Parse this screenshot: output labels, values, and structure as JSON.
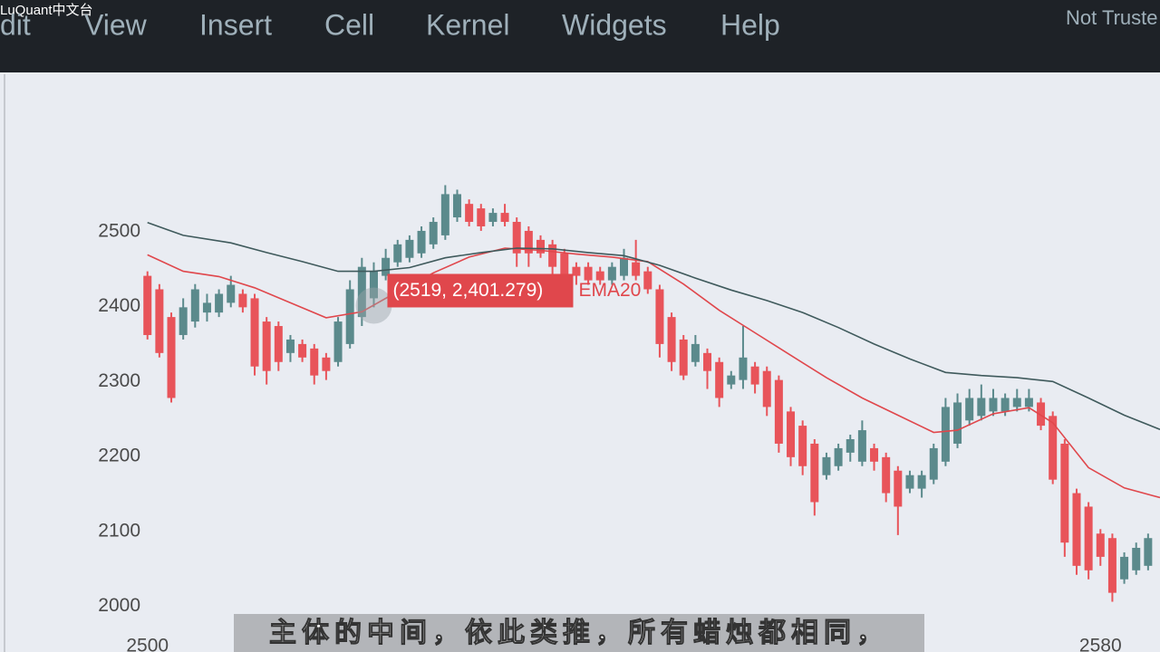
{
  "watermark": "LuQuant中文台",
  "menu": {
    "items": [
      "dit",
      "View",
      "Insert",
      "Cell",
      "Kernel",
      "Widgets",
      "Help"
    ],
    "trust_status": "Not Truste"
  },
  "subtitle": "主体的中间，依此类推，所有蜡烛都相同，",
  "chart_data": {
    "type": "candlestick",
    "up_color": "#5b8a8c",
    "down_color": "#e8545a",
    "xlim": [
      2488,
      2585
    ],
    "ylim": [
      1939,
      2710
    ],
    "xticks": [
      2500,
      2580
    ],
    "yticks": [
      2000,
      2100,
      2200,
      2300,
      2400,
      2500
    ],
    "x": [
      2500,
      2501,
      2502,
      2503,
      2504,
      2505,
      2506,
      2507,
      2508,
      2509,
      2510,
      2511,
      2512,
      2513,
      2514,
      2515,
      2516,
      2517,
      2518,
      2519,
      2520,
      2521,
      2522,
      2523,
      2524,
      2525,
      2526,
      2527,
      2528,
      2529,
      2530,
      2531,
      2532,
      2533,
      2534,
      2535,
      2536,
      2537,
      2538,
      2539,
      2540,
      2541,
      2542,
      2543,
      2544,
      2545,
      2546,
      2547,
      2548,
      2549,
      2550,
      2551,
      2552,
      2553,
      2554,
      2555,
      2556,
      2557,
      2558,
      2559,
      2560,
      2561,
      2562,
      2563,
      2564,
      2565,
      2566,
      2567,
      2568,
      2569,
      2570,
      2571,
      2572,
      2573,
      2574,
      2575,
      2576,
      2577,
      2578,
      2579,
      2580,
      2581,
      2582,
      2583,
      2584
    ],
    "open": [
      2441,
      2423,
      2386,
      2362,
      2380,
      2392,
      2392,
      2405,
      2417,
      2411,
      2380,
      2374,
      2338,
      2350,
      2344,
      2332,
      2326,
      2350,
      2386,
      2411,
      2441,
      2459,
      2465,
      2471,
      2483,
      2495,
      2519,
      2537,
      2531,
      2513,
      2525,
      2513,
      2501,
      2489,
      2483,
      2471,
      2453,
      2453,
      2447,
      2435,
      2441,
      2459,
      2447,
      2423,
      2386,
      2356,
      2326,
      2338,
      2326,
      2296,
      2302,
      2320,
      2314,
      2302,
      2260,
      2241,
      2217,
      2175,
      2187,
      2205,
      2193,
      2211,
      2199,
      2181,
      2157,
      2157,
      2169,
      2193,
      2217,
      2248,
      2254,
      2260,
      2260,
      2266,
      2266,
      2272,
      2254,
      2217,
      2151,
      2133,
      2097,
      2091,
      2036,
      2048,
      2054
    ],
    "high": [
      2447,
      2430,
      2392,
      2411,
      2430,
      2417,
      2423,
      2441,
      2423,
      2417,
      2386,
      2380,
      2362,
      2356,
      2350,
      2338,
      2386,
      2435,
      2465,
      2459,
      2477,
      2489,
      2495,
      2507,
      2519,
      2562,
      2556,
      2543,
      2537,
      2531,
      2537,
      2519,
      2507,
      2495,
      2489,
      2477,
      2459,
      2459,
      2453,
      2459,
      2477,
      2489,
      2453,
      2429,
      2392,
      2362,
      2362,
      2344,
      2332,
      2314,
      2374,
      2326,
      2320,
      2308,
      2266,
      2248,
      2223,
      2205,
      2217,
      2229,
      2248,
      2217,
      2205,
      2187,
      2181,
      2181,
      2217,
      2278,
      2284,
      2290,
      2296,
      2290,
      2284,
      2290,
      2290,
      2278,
      2260,
      2223,
      2157,
      2139,
      2103,
      2097,
      2072,
      2085,
      2097
    ],
    "low": [
      2356,
      2332,
      2272,
      2356,
      2372,
      2380,
      2386,
      2399,
      2392,
      2308,
      2296,
      2314,
      2326,
      2326,
      2296,
      2302,
      2320,
      2344,
      2374,
      2399,
      2435,
      2453,
      2459,
      2465,
      2477,
      2489,
      2513,
      2507,
      2501,
      2507,
      2507,
      2453,
      2453,
      2465,
      2441,
      2429,
      2429,
      2429,
      2429,
      2429,
      2435,
      2435,
      2417,
      2332,
      2314,
      2302,
      2320,
      2290,
      2266,
      2290,
      2290,
      2284,
      2254,
      2205,
      2187,
      2175,
      2121,
      2169,
      2181,
      2193,
      2187,
      2181,
      2139,
      2095,
      2151,
      2145,
      2163,
      2187,
      2211,
      2241,
      2248,
      2254,
      2254,
      2260,
      2260,
      2235,
      2163,
      2066,
      2042,
      2036,
      2054,
      2006,
      2030,
      2042,
      2048
    ],
    "close": [
      2362,
      2338,
      2278,
      2399,
      2423,
      2405,
      2417,
      2429,
      2399,
      2320,
      2314,
      2326,
      2356,
      2332,
      2308,
      2314,
      2380,
      2423,
      2453,
      2447,
      2465,
      2483,
      2489,
      2501,
      2513,
      2550,
      2550,
      2513,
      2507,
      2525,
      2513,
      2471,
      2471,
      2471,
      2453,
      2435,
      2441,
      2435,
      2435,
      2453,
      2465,
      2441,
      2423,
      2350,
      2326,
      2308,
      2350,
      2314,
      2278,
      2308,
      2332,
      2296,
      2266,
      2217,
      2199,
      2187,
      2139,
      2199,
      2211,
      2223,
      2235,
      2193,
      2151,
      2133,
      2175,
      2175,
      2211,
      2266,
      2272,
      2278,
      2278,
      2278,
      2278,
      2278,
      2278,
      2241,
      2169,
      2085,
      2054,
      2048,
      2066,
      2018,
      2066,
      2078,
      2091
    ],
    "lines": [
      {
        "name": "EMA20",
        "color": "#e0474c",
        "x": [
          2500,
          2503,
          2506,
          2509,
          2512,
          2515,
          2518,
          2521,
          2524,
          2527,
          2530,
          2533,
          2536,
          2539,
          2542,
          2545,
          2548,
          2551,
          2554,
          2557,
          2560,
          2563,
          2566,
          2568,
          2571,
          2574,
          2576,
          2579,
          2582,
          2585
        ],
        "values": [
          2469,
          2447,
          2440,
          2425,
          2405,
          2385,
          2393,
          2420,
          2445,
          2466,
          2478,
          2475,
          2470,
          2466,
          2460,
          2430,
          2395,
          2365,
          2335,
          2305,
          2278,
          2255,
          2232,
          2235,
          2257,
          2265,
          2245,
          2185,
          2158,
          2145
        ]
      },
      {
        "color": "#3f5a5c",
        "x": [
          2500,
          2503,
          2507,
          2510,
          2513,
          2516,
          2519,
          2522,
          2525,
          2528,
          2531,
          2534,
          2537,
          2540,
          2543,
          2546,
          2549,
          2552,
          2555,
          2558,
          2561,
          2564,
          2567,
          2570,
          2573,
          2576,
          2579,
          2582,
          2585
        ],
        "values": [
          2512,
          2495,
          2485,
          2472,
          2460,
          2447,
          2447,
          2452,
          2465,
          2472,
          2478,
          2477,
          2472,
          2468,
          2455,
          2438,
          2422,
          2408,
          2392,
          2372,
          2350,
          2330,
          2312,
          2308,
          2305,
          2300,
          2278,
          2255,
          2236
        ]
      }
    ],
    "tooltip": {
      "text": "(2519, 2,401.279)",
      "x": 2519,
      "y": 2401.279
    }
  }
}
